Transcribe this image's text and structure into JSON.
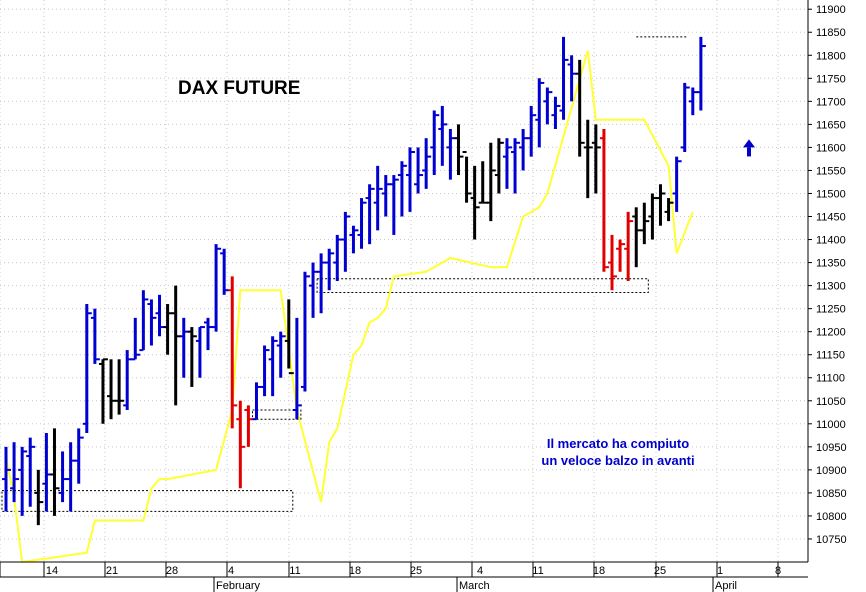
{
  "chart_data": {
    "type": "ohlc-bar",
    "title": "DAX FUTURE",
    "annotation": [
      "Il mercato ha compiuto",
      "un veloce balzo in avanti"
    ],
    "ylim": [
      10700,
      11920
    ],
    "y_ticks": [
      10750,
      10800,
      10850,
      10900,
      10950,
      11000,
      11050,
      11100,
      11150,
      11200,
      11250,
      11300,
      11350,
      11400,
      11450,
      11500,
      11550,
      11600,
      11650,
      11700,
      11750,
      11800,
      11850,
      11900
    ],
    "x_day_ticks": [
      "14",
      "21",
      "28",
      "4",
      "11",
      "18",
      "25",
      "4",
      "11",
      "18",
      "25",
      "1",
      "8"
    ],
    "month_labels": [
      "February",
      "March",
      "April"
    ],
    "grid": true,
    "colors": {
      "up": "#0000d0",
      "down": "#e00000",
      "neutral": "#000000",
      "line": "#ffff33",
      "annotation": "#0000cc",
      "arrow": "#0000cc"
    },
    "signal_marker": "up-arrow",
    "bars": [
      {
        "c": "blue",
        "h": 10950,
        "l": 10810,
        "o": 10880,
        "cl": 10900
      },
      {
        "c": "blue",
        "h": 10960,
        "l": 10830,
        "o": 10860,
        "cl": 10880
      },
      {
        "c": "blue",
        "h": 10950,
        "l": 10800,
        "o": 10900,
        "cl": 10940
      },
      {
        "c": "blue",
        "h": 10970,
        "l": 10820,
        "o": 10930,
        "cl": 10950
      },
      {
        "c": "black",
        "h": 10900,
        "l": 10780,
        "o": 10850,
        "cl": 10830
      },
      {
        "c": "blue",
        "h": 10980,
        "l": 10810,
        "o": 10870,
        "cl": 10890
      },
      {
        "c": "black",
        "h": 10990,
        "l": 10800,
        "o": 10890,
        "cl": 10860
      },
      {
        "c": "blue",
        "h": 10940,
        "l": 10830,
        "o": 10850,
        "cl": 10880
      },
      {
        "c": "blue",
        "h": 10960,
        "l": 10810,
        "o": 10880,
        "cl": 10920
      },
      {
        "c": "blue",
        "h": 10990,
        "l": 10870,
        "o": 10920,
        "cl": 10970
      },
      {
        "c": "blue",
        "h": 11260,
        "l": 10980,
        "o": 11000,
        "cl": 11240
      },
      {
        "c": "blue",
        "h": 11250,
        "l": 11130,
        "o": 11230,
        "cl": 11140
      },
      {
        "c": "black",
        "h": 11140,
        "l": 11000,
        "o": 11130,
        "cl": 11140
      },
      {
        "c": "black",
        "h": 11140,
        "l": 11010,
        "o": 11060,
        "cl": 11050
      },
      {
        "c": "black",
        "h": 11140,
        "l": 11020,
        "o": 11050,
        "cl": 11050
      },
      {
        "c": "blue",
        "h": 11160,
        "l": 11030,
        "o": 11040,
        "cl": 11140
      },
      {
        "c": "blue",
        "h": 11230,
        "l": 11140,
        "o": 11140,
        "cl": 11150
      },
      {
        "c": "blue",
        "h": 11290,
        "l": 11160,
        "o": 11160,
        "cl": 11270
      },
      {
        "c": "blue",
        "h": 11270,
        "l": 11170,
        "o": 11260,
        "cl": 11230
      },
      {
        "c": "blue",
        "h": 11280,
        "l": 11190,
        "o": 11240,
        "cl": 11210
      },
      {
        "c": "black",
        "h": 11260,
        "l": 11150,
        "o": 11210,
        "cl": 11240
      },
      {
        "c": "black",
        "h": 11300,
        "l": 11040,
        "o": 11240,
        "cl": 11190
      },
      {
        "c": "blue",
        "h": 11230,
        "l": 11100,
        "o": 11190,
        "cl": 11200
      },
      {
        "c": "black",
        "h": 11210,
        "l": 11080,
        "o": 11200,
        "cl": 11190
      },
      {
        "c": "blue",
        "h": 11210,
        "l": 11100,
        "o": 11180,
        "cl": 11210
      },
      {
        "c": "blue",
        "h": 11230,
        "l": 11160,
        "o": 11220,
        "cl": 11210
      },
      {
        "c": "blue",
        "h": 11390,
        "l": 11200,
        "o": 11210,
        "cl": 11380
      },
      {
        "c": "blue",
        "h": 11380,
        "l": 11280,
        "o": 11370,
        "cl": 11290
      },
      {
        "c": "red",
        "h": 11320,
        "l": 10990,
        "o": 11290,
        "cl": 11040
      },
      {
        "c": "red",
        "h": 11050,
        "l": 10860,
        "o": 11010,
        "cl": 10950
      },
      {
        "c": "red",
        "h": 11040,
        "l": 10950,
        "o": 11030,
        "cl": 11010
      },
      {
        "c": "blue",
        "h": 11090,
        "l": 11010,
        "o": 11010,
        "cl": 11080
      },
      {
        "c": "blue",
        "h": 11170,
        "l": 11060,
        "o": 11080,
        "cl": 11160
      },
      {
        "c": "blue",
        "h": 11190,
        "l": 11060,
        "o": 11140,
        "cl": 11180
      },
      {
        "c": "blue",
        "h": 11200,
        "l": 11100,
        "o": 11170,
        "cl": 11190
      },
      {
        "c": "black",
        "h": 11270,
        "l": 11120,
        "o": 11180,
        "cl": 11110
      },
      {
        "c": "blue",
        "h": 11230,
        "l": 11010,
        "o": 11030,
        "cl": 11040
      },
      {
        "c": "blue",
        "h": 11330,
        "l": 11070,
        "o": 11080,
        "cl": 11320
      },
      {
        "c": "blue",
        "h": 11350,
        "l": 11230,
        "o": 11300,
        "cl": 11330
      },
      {
        "c": "blue",
        "h": 11370,
        "l": 11240,
        "o": 11330,
        "cl": 11350
      },
      {
        "c": "blue",
        "h": 11380,
        "l": 11290,
        "o": 11350,
        "cl": 11370
      },
      {
        "c": "blue",
        "h": 11410,
        "l": 11310,
        "o": 11350,
        "cl": 11400
      },
      {
        "c": "blue",
        "h": 11460,
        "l": 11330,
        "o": 11400,
        "cl": 11450
      },
      {
        "c": "blue",
        "h": 11430,
        "l": 11370,
        "o": 11410,
        "cl": 11420
      },
      {
        "c": "blue",
        "h": 11490,
        "l": 11380,
        "o": 11410,
        "cl": 11480
      },
      {
        "c": "blue",
        "h": 11520,
        "l": 11390,
        "o": 11490,
        "cl": 11510
      },
      {
        "c": "blue",
        "h": 11560,
        "l": 11420,
        "o": 11480,
        "cl": 11510
      },
      {
        "c": "blue",
        "h": 11540,
        "l": 11450,
        "o": 11500,
        "cl": 11520
      },
      {
        "c": "blue",
        "h": 11540,
        "l": 11410,
        "o": 11520,
        "cl": 11530
      },
      {
        "c": "blue",
        "h": 11570,
        "l": 11450,
        "o": 11540,
        "cl": 11560
      },
      {
        "c": "blue",
        "h": 11600,
        "l": 11460,
        "o": 11540,
        "cl": 11590
      },
      {
        "c": "blue",
        "h": 11600,
        "l": 11500,
        "o": 11520,
        "cl": 11540
      },
      {
        "c": "blue",
        "h": 11620,
        "l": 11510,
        "o": 11550,
        "cl": 11580
      },
      {
        "c": "blue",
        "h": 11680,
        "l": 11540,
        "o": 11600,
        "cl": 11670
      },
      {
        "c": "blue",
        "h": 11690,
        "l": 11560,
        "o": 11640,
        "cl": 11650
      },
      {
        "c": "blue",
        "h": 11640,
        "l": 11530,
        "o": 11600,
        "cl": 11620
      },
      {
        "c": "black",
        "h": 11650,
        "l": 11540,
        "o": 11620,
        "cl": 11580
      },
      {
        "c": "black",
        "h": 11580,
        "l": 11480,
        "o": 11590,
        "cl": 11500
      },
      {
        "c": "black",
        "h": 11560,
        "l": 11400,
        "o": 11490,
        "cl": 11470
      },
      {
        "c": "black",
        "h": 11570,
        "l": 11480,
        "o": 11480,
        "cl": 11480
      },
      {
        "c": "black",
        "h": 11610,
        "l": 11440,
        "o": 11480,
        "cl": 11550
      },
      {
        "c": "black",
        "h": 11620,
        "l": 11500,
        "o": 11540,
        "cl": 11610
      },
      {
        "c": "blue",
        "h": 11620,
        "l": 11510,
        "o": 11580,
        "cl": 11600
      },
      {
        "c": "blue",
        "h": 11620,
        "l": 11500,
        "o": 11590,
        "cl": 11610
      },
      {
        "c": "blue",
        "h": 11640,
        "l": 11550,
        "o": 11600,
        "cl": 11620
      },
      {
        "c": "blue",
        "h": 11690,
        "l": 11580,
        "o": 11620,
        "cl": 11670
      },
      {
        "c": "blue",
        "h": 11750,
        "l": 11600,
        "o": 11660,
        "cl": 11740
      },
      {
        "c": "blue",
        "h": 11730,
        "l": 11650,
        "o": 11700,
        "cl": 11720
      },
      {
        "c": "blue",
        "h": 11710,
        "l": 11640,
        "o": 11670,
        "cl": 11690
      },
      {
        "c": "blue",
        "h": 11840,
        "l": 11660,
        "o": 11680,
        "cl": 11790
      },
      {
        "c": "blue",
        "h": 11800,
        "l": 11700,
        "o": 11780,
        "cl": 11760
      },
      {
        "c": "black",
        "h": 11790,
        "l": 11580,
        "o": 11760,
        "cl": 11610
      },
      {
        "c": "black",
        "h": 11660,
        "l": 11490,
        "o": 11600,
        "cl": 11600
      },
      {
        "c": "black",
        "h": 11650,
        "l": 11500,
        "o": 11610,
        "cl": 11600
      },
      {
        "c": "red",
        "h": 11640,
        "l": 11330,
        "o": 11620,
        "cl": 11340
      },
      {
        "c": "red",
        "h": 11410,
        "l": 11290,
        "o": 11350,
        "cl": 11320
      },
      {
        "c": "red",
        "h": 11400,
        "l": 11330,
        "o": 11380,
        "cl": 11390
      },
      {
        "c": "red",
        "h": 11460,
        "l": 11310,
        "o": 11380,
        "cl": 11440
      },
      {
        "c": "black",
        "h": 11470,
        "l": 11340,
        "o": 11450,
        "cl": 11420
      },
      {
        "c": "black",
        "h": 11480,
        "l": 11390,
        "o": 11420,
        "cl": 11440
      },
      {
        "c": "black",
        "h": 11500,
        "l": 11400,
        "o": 11450,
        "cl": 11490
      },
      {
        "c": "black",
        "h": 11520,
        "l": 11430,
        "o": 11490,
        "cl": 11500
      },
      {
        "c": "black",
        "h": 11490,
        "l": 11440,
        "o": 11460,
        "cl": 11480
      },
      {
        "c": "blue",
        "h": 11580,
        "l": 11460,
        "o": 11500,
        "cl": 11570
      },
      {
        "c": "blue",
        "h": 11740,
        "l": 11590,
        "o": 11600,
        "cl": 11730
      },
      {
        "c": "blue",
        "h": 11730,
        "l": 11670,
        "o": 11700,
        "cl": 11720
      },
      {
        "c": "blue",
        "h": 11840,
        "l": 11680,
        "o": 11720,
        "cl": 11820
      }
    ],
    "line_series": {
      "name": "",
      "points": [
        [
          0,
          10930
        ],
        [
          1,
          10840
        ],
        [
          2,
          10700
        ],
        [
          10,
          10720
        ],
        [
          11,
          10790
        ],
        [
          12,
          10790
        ],
        [
          16,
          10790
        ],
        [
          17,
          10790
        ],
        [
          18,
          10860
        ],
        [
          19,
          10880
        ],
        [
          20,
          10880
        ],
        [
          23,
          10890
        ],
        [
          26,
          10900
        ],
        [
          28,
          11030
        ],
        [
          29,
          11290
        ],
        [
          30,
          11290
        ],
        [
          34,
          11290
        ],
        [
          36,
          11030
        ],
        [
          39,
          10830
        ],
        [
          40,
          10960
        ],
        [
          41,
          10990
        ],
        [
          42,
          11070
        ],
        [
          43,
          11150
        ],
        [
          44,
          11170
        ],
        [
          45,
          11220
        ],
        [
          46,
          11230
        ],
        [
          47,
          11250
        ],
        [
          48,
          11320
        ],
        [
          52,
          11330
        ],
        [
          53,
          11340
        ],
        [
          55,
          11360
        ],
        [
          60,
          11340
        ],
        [
          62,
          11340
        ],
        [
          64,
          11450
        ],
        [
          66,
          11470
        ],
        [
          67,
          11500
        ],
        [
          72,
          11810
        ],
        [
          73,
          11660
        ],
        [
          78,
          11660
        ],
        [
          79,
          11660
        ],
        [
          82,
          11560
        ],
        [
          83,
          11370
        ],
        [
          85,
          11460
        ]
      ]
    },
    "ref_boxes": [
      {
        "x0": 0,
        "x1": 35,
        "ylo": 10810,
        "yhi": 10855
      },
      {
        "x0": 31,
        "x1": 36,
        "ylo": 11010,
        "yhi": 11030
      },
      {
        "x0": 39,
        "x1": 79,
        "ylo": 11285,
        "yhi": 11315
      }
    ],
    "ref_line": {
      "x0": 78,
      "x1": 84,
      "y": 11840
    }
  }
}
